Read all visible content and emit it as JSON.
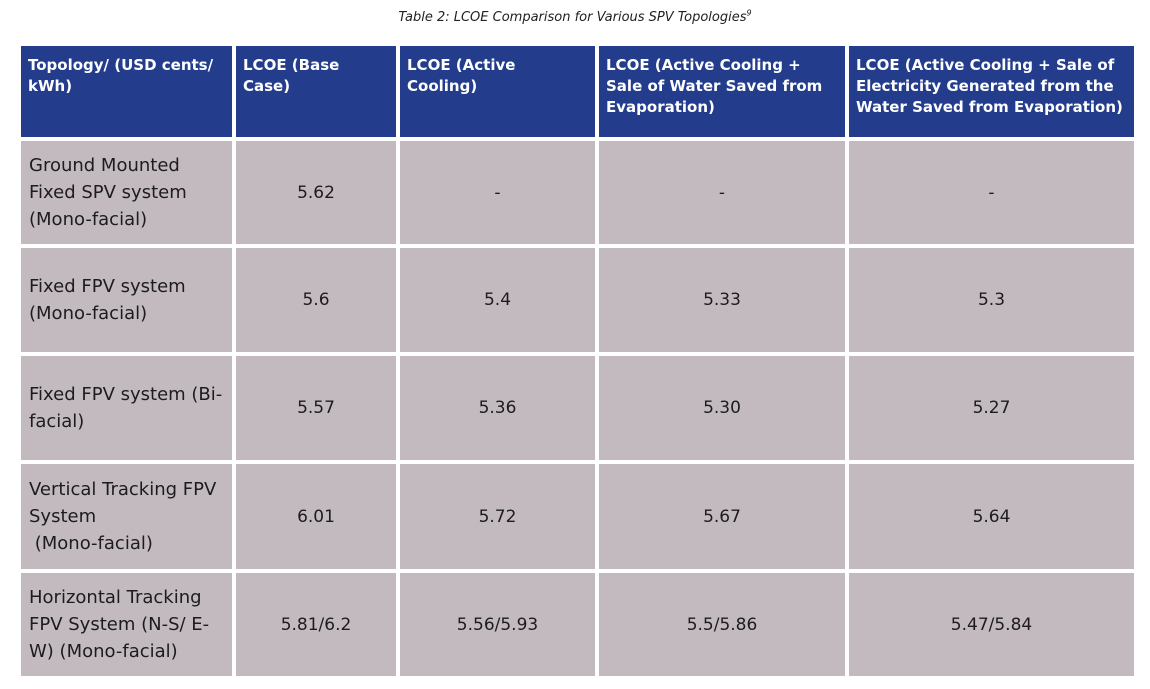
{
  "caption": {
    "text": "Table 2: LCOE Comparison for Various SPV Topologies",
    "footnote": "9"
  },
  "table": {
    "headers": [
      "Topology/ (USD cents/ kWh)",
      "LCOE (Base Case)",
      "LCOE (Active Cooling)",
      "LCOE (Active Cooling + Sale of Water Saved from Evaporation)",
      "LCOE (Active Cooling + Sale of Electricity Generated from the Water Saved from Evaporation)"
    ],
    "rows": [
      {
        "topology": "Ground Mounted Fixed SPV system (Mono-facial)",
        "values": [
          "5.62",
          "-",
          "-",
          "-"
        ]
      },
      {
        "topology": "Fixed FPV system (Mono-facial)",
        "values": [
          "5.6",
          "5.4",
          "5.33",
          "5.3"
        ]
      },
      {
        "topology": "Fixed FPV system (Bi-facial)",
        "values": [
          "5.57",
          "5.36",
          "5.30",
          "5.27"
        ]
      },
      {
        "topology": "Vertical Tracking FPV System\n (Mono-facial)",
        "values": [
          "6.01",
          "5.72",
          "5.67",
          "5.64"
        ]
      },
      {
        "topology": "Horizontal Tracking FPV System (N-S/ E-W) (Mono-facial)",
        "values": [
          "5.81/6.2",
          "5.56/5.93",
          "5.5/5.86",
          "5.47/5.84"
        ]
      }
    ]
  },
  "colors": {
    "header_bg": "#233d8c",
    "header_text": "#ffffff",
    "cell_bg": "#c3babf",
    "cell_text": "#1c1c1c"
  }
}
